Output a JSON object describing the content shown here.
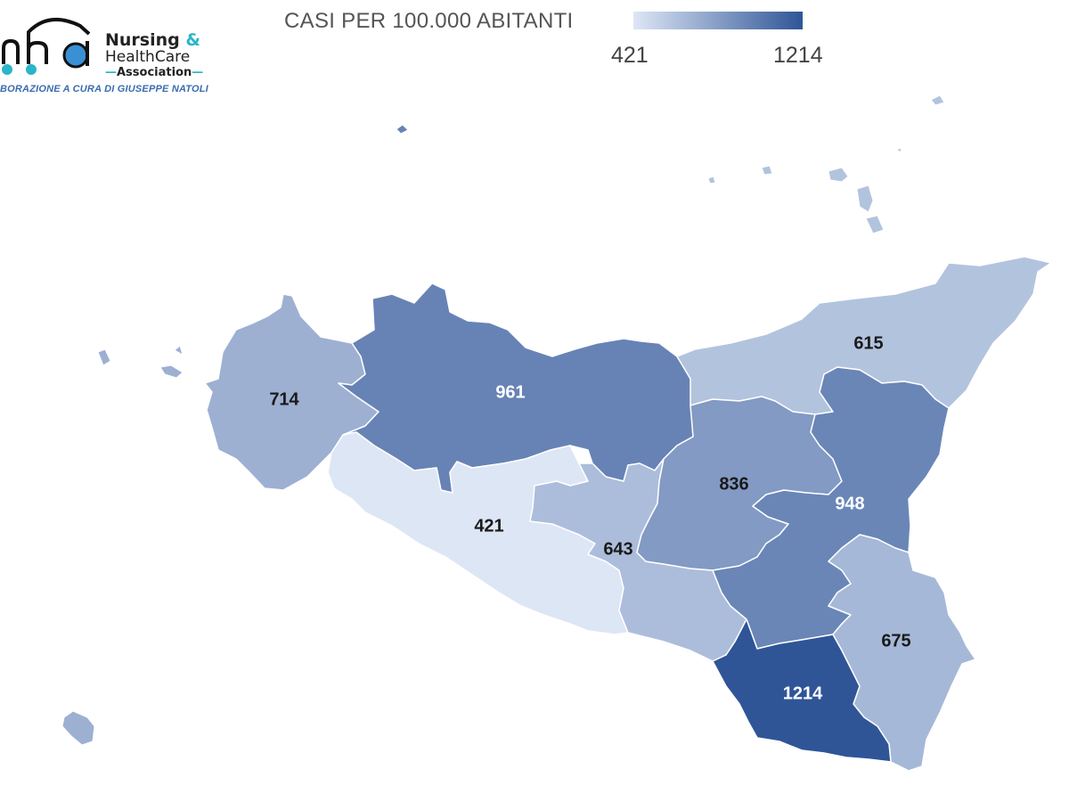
{
  "logo": {
    "line1": "Nursing",
    "amp": "&",
    "line2": "HealthCare",
    "line3": "Association",
    "dash": "—"
  },
  "credit": "BORAZIONE A CURA DI GIUSEPPE NATOLI",
  "title": "CASI PER 100.000 ABITANTI",
  "legend": {
    "min_label": "421",
    "max_label": "1214",
    "min_value": 421,
    "max_value": 1214,
    "color_low": "#dde6f5",
    "color_high": "#2f5597"
  },
  "provinces": [
    {
      "id": "trapani",
      "value": 714,
      "label": "714"
    },
    {
      "id": "palermo",
      "value": 961,
      "label": "961"
    },
    {
      "id": "messina",
      "value": 615,
      "label": "615"
    },
    {
      "id": "agrigento",
      "value": 421,
      "label": "421"
    },
    {
      "id": "caltanissetta",
      "value": 643,
      "label": "643"
    },
    {
      "id": "enna",
      "value": 836,
      "label": "836"
    },
    {
      "id": "catania",
      "value": 948,
      "label": "948"
    },
    {
      "id": "siracusa",
      "value": 675,
      "label": "675"
    },
    {
      "id": "ragusa",
      "value": 1214,
      "label": "1214"
    }
  ]
}
